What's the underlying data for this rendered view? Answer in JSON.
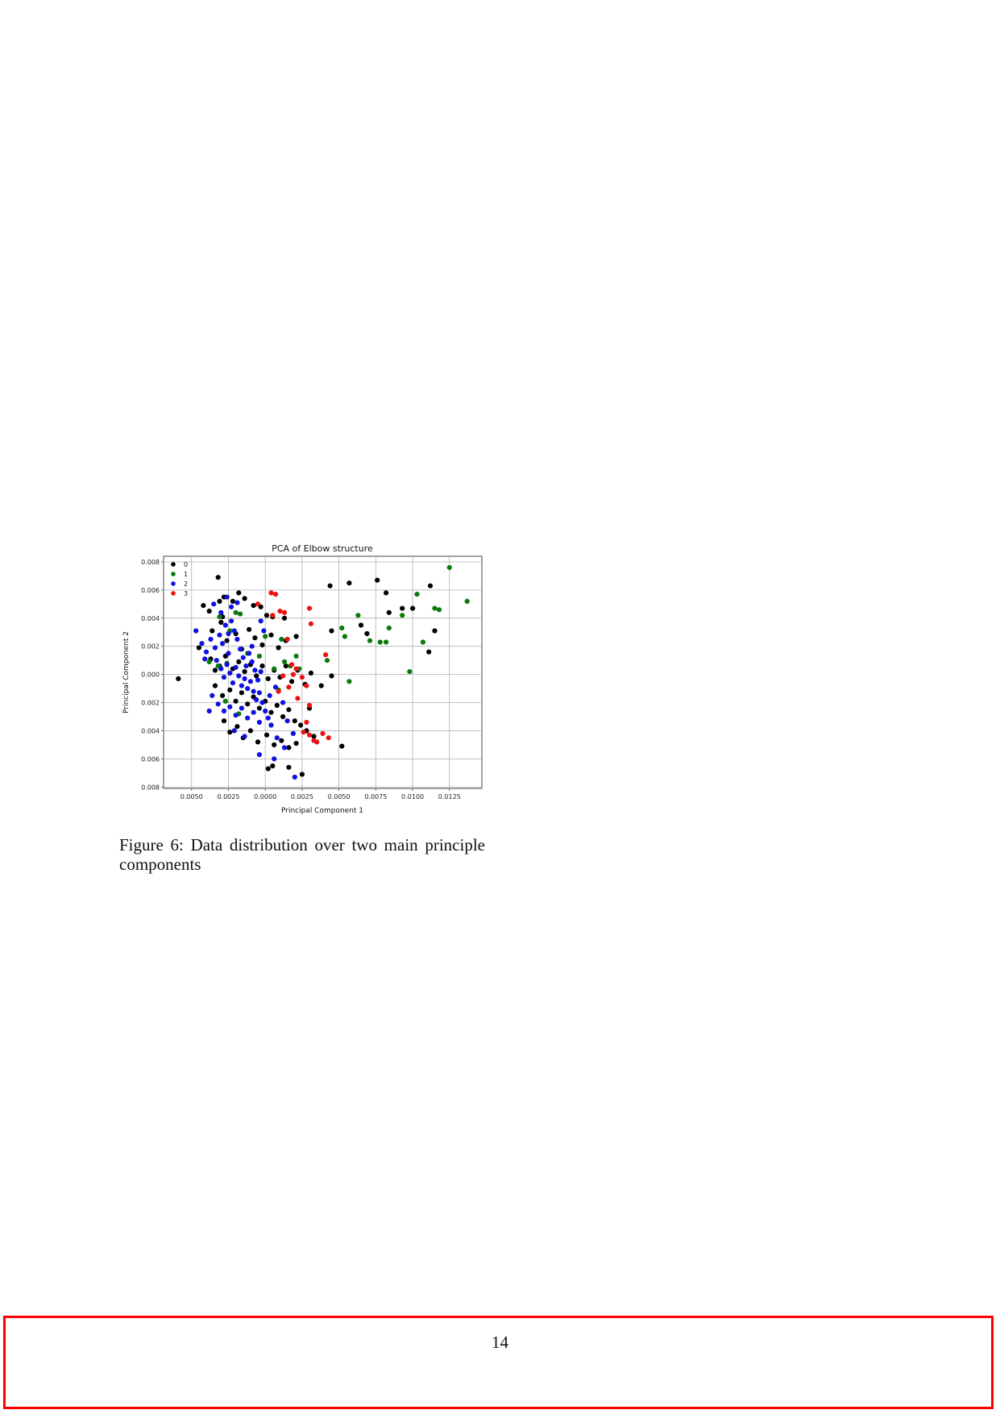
{
  "figure": {
    "caption": "Figure 6:  Data distribution over two main principle components"
  },
  "page": {
    "number": "14",
    "highlight_color": "#ff0000"
  },
  "chart_data": {
    "type": "scatter",
    "title": "PCA of Elbow structure",
    "xlabel": "Principal Component 1",
    "ylabel": "Principal Component 2",
    "xlim": [
      -0.0069,
      0.0147
    ],
    "ylim": [
      -0.0081,
      0.0084
    ],
    "xticks": [
      -0.005,
      -0.0025,
      0.0,
      0.0025,
      0.005,
      0.0075,
      0.01,
      0.0125
    ],
    "xtick_labels": [
      "0.0050",
      "0.0025",
      "0.0000",
      "0.0025",
      "0.0050",
      "0.0075",
      "0.0100",
      "0.0125"
    ],
    "yticks": [
      0.008,
      0.006,
      0.004,
      0.002,
      0.0,
      -0.002,
      -0.004,
      -0.006,
      -0.008
    ],
    "ytick_labels": [
      "0.008",
      "0.006",
      "0.004",
      "0.002",
      "0.000",
      "0.002",
      "0.004",
      "0.006",
      "0.008"
    ],
    "grid": true,
    "legend_position": "upper-left",
    "series": [
      {
        "name": "0",
        "color": "#000000",
        "points": [
          [
            -0.0059,
            -0.0003
          ],
          [
            -0.0045,
            0.0019
          ],
          [
            -0.0042,
            0.0049
          ],
          [
            -0.0038,
            0.0045
          ],
          [
            -0.0032,
            0.0069
          ],
          [
            -0.0031,
            0.0052
          ],
          [
            -0.0029,
            0.0041
          ],
          [
            -0.0028,
            0.0055
          ],
          [
            -0.0022,
            0.0052
          ],
          [
            -0.0018,
            0.0058
          ],
          [
            -0.0014,
            0.0054
          ],
          [
            -0.0008,
            0.0049
          ],
          [
            -0.0003,
            0.0048
          ],
          [
            0.0001,
            0.0042
          ],
          [
            0.0005,
            0.0041
          ],
          [
            0.0013,
            0.004
          ],
          [
            -0.0036,
            0.0031
          ],
          [
            -0.003,
            0.0037
          ],
          [
            -0.0026,
            0.0024
          ],
          [
            -0.002,
            0.0029
          ],
          [
            -0.0016,
            0.0018
          ],
          [
            -0.0011,
            0.0032
          ],
          [
            -0.0007,
            0.0026
          ],
          [
            -0.0002,
            0.0021
          ],
          [
            0.0004,
            0.0028
          ],
          [
            0.0009,
            0.0019
          ],
          [
            0.0014,
            0.0024
          ],
          [
            0.0021,
            0.0027
          ],
          [
            -0.0037,
            0.0011
          ],
          [
            -0.0031,
            0.0006
          ],
          [
            -0.0027,
            0.0013
          ],
          [
            -0.0022,
            0.0004
          ],
          [
            -0.0018,
            0.0009
          ],
          [
            -0.0014,
            0.0002
          ],
          [
            -0.001,
            0.0007
          ],
          [
            -0.0006,
            -0.0001
          ],
          [
            -0.0002,
            0.0006
          ],
          [
            0.0002,
            -0.0003
          ],
          [
            0.0006,
            0.0003
          ],
          [
            0.001,
            -0.0002
          ],
          [
            0.0014,
            0.0006
          ],
          [
            0.0018,
            -0.0005
          ],
          [
            0.0022,
            0.0003
          ],
          [
            0.0027,
            -0.0007
          ],
          [
            0.0031,
            0.0001
          ],
          [
            -0.0034,
            -0.0008
          ],
          [
            -0.0029,
            -0.0015
          ],
          [
            -0.0024,
            -0.0011
          ],
          [
            -0.002,
            -0.0019
          ],
          [
            -0.0016,
            -0.0013
          ],
          [
            -0.0012,
            -0.0021
          ],
          [
            -0.0008,
            -0.0016
          ],
          [
            -0.0004,
            -0.0024
          ],
          [
            0.0,
            -0.0019
          ],
          [
            0.0004,
            -0.0027
          ],
          [
            0.0008,
            -0.0022
          ],
          [
            0.0012,
            -0.003
          ],
          [
            0.0016,
            -0.0025
          ],
          [
            0.002,
            -0.0033
          ],
          [
            0.0024,
            -0.0036
          ],
          [
            0.0028,
            -0.004
          ],
          [
            0.0033,
            -0.0044
          ],
          [
            -0.0028,
            -0.0033
          ],
          [
            -0.0024,
            -0.0041
          ],
          [
            -0.0019,
            -0.0037
          ],
          [
            -0.0015,
            -0.0045
          ],
          [
            -0.001,
            -0.004
          ],
          [
            -0.0005,
            -0.0048
          ],
          [
            0.0001,
            -0.0043
          ],
          [
            0.0006,
            -0.005
          ],
          [
            0.0011,
            -0.0047
          ],
          [
            0.0016,
            -0.0052
          ],
          [
            0.0021,
            -0.0049
          ],
          [
            0.0002,
            -0.0067
          ],
          [
            0.0005,
            -0.0065
          ],
          [
            0.0016,
            -0.0066
          ],
          [
            0.0025,
            -0.0071
          ],
          [
            0.0052,
            -0.0051
          ],
          [
            0.0045,
            -0.0001
          ],
          [
            0.0038,
            -0.0008
          ],
          [
            0.0045,
            0.0031
          ],
          [
            0.0044,
            0.0063
          ],
          [
            0.0057,
            0.0065
          ],
          [
            0.0076,
            0.0067
          ],
          [
            0.0082,
            0.0058
          ],
          [
            0.0065,
            0.0035
          ],
          [
            0.0069,
            0.0029
          ],
          [
            0.0084,
            0.0044
          ],
          [
            0.0093,
            0.0047
          ],
          [
            0.01,
            0.0047
          ],
          [
            0.0112,
            0.0063
          ],
          [
            0.0115,
            0.0031
          ],
          [
            0.0111,
            0.0016
          ],
          [
            -0.0034,
            0.0003
          ],
          [
            0.003,
            -0.0024
          ]
        ]
      },
      {
        "name": "1",
        "color": "#0a7a0a",
        "points": [
          [
            0.0125,
            0.0076
          ],
          [
            0.0137,
            0.0052
          ],
          [
            0.0103,
            0.0057
          ],
          [
            0.0115,
            0.0047
          ],
          [
            0.0118,
            0.0046
          ],
          [
            0.0093,
            0.0042
          ],
          [
            0.0063,
            0.0042
          ],
          [
            0.0084,
            0.0033
          ],
          [
            0.0052,
            0.0033
          ],
          [
            0.0054,
            0.0027
          ],
          [
            0.0071,
            0.0024
          ],
          [
            0.0078,
            0.0023
          ],
          [
            0.0082,
            0.0023
          ],
          [
            0.0107,
            0.0023
          ],
          [
            0.0098,
            0.0002
          ],
          [
            0.0057,
            -0.0005
          ],
          [
            0.0042,
            0.001
          ],
          [
            0.0021,
            0.0013
          ],
          [
            0.0013,
            0.0009
          ],
          [
            -0.0004,
            0.0013
          ],
          [
            -0.0012,
            0.0015
          ],
          [
            -0.002,
            0.0044
          ],
          [
            -0.0017,
            0.0043
          ],
          [
            -0.0024,
            0.0031
          ],
          [
            -0.0032,
            0.0006
          ],
          [
            -0.0038,
            0.0009
          ],
          [
            -0.0026,
            0.0008
          ],
          [
            0.0006,
            0.0004
          ],
          [
            0.0017,
            0.0006
          ],
          [
            0.0023,
            0.0004
          ],
          [
            0.0,
            0.0027
          ],
          [
            -0.0031,
            0.0041
          ],
          [
            0.0011,
            0.0025
          ],
          [
            -0.0027,
            -0.0019
          ],
          [
            -0.0018,
            -0.0028
          ],
          [
            0.0009,
            -0.0011
          ]
        ]
      },
      {
        "name": "2",
        "color": "#1010e0",
        "points": [
          [
            -0.0047,
            0.0031
          ],
          [
            -0.0043,
            0.0022
          ],
          [
            -0.004,
            0.0016
          ],
          [
            -0.0037,
            0.0025
          ],
          [
            -0.0034,
            0.0019
          ],
          [
            -0.0031,
            0.0028
          ],
          [
            -0.0029,
            0.0022
          ],
          [
            -0.0027,
            0.0035
          ],
          [
            -0.0025,
            0.0029
          ],
          [
            -0.0023,
            0.0038
          ],
          [
            -0.0021,
            0.0031
          ],
          [
            -0.0019,
            0.0025
          ],
          [
            -0.0017,
            0.0018
          ],
          [
            -0.0015,
            0.0012
          ],
          [
            -0.0013,
            0.0006
          ],
          [
            -0.0011,
            0.0015
          ],
          [
            -0.0009,
            0.0009
          ],
          [
            -0.0007,
            0.0003
          ],
          [
            -0.0005,
            -0.0004
          ],
          [
            -0.0003,
            0.0002
          ],
          [
            -0.0033,
            0.001
          ],
          [
            -0.003,
            0.0004
          ],
          [
            -0.0028,
            -0.0002
          ],
          [
            -0.0026,
            0.0007
          ],
          [
            -0.0024,
            0.0001
          ],
          [
            -0.0022,
            -0.0006
          ],
          [
            -0.002,
            0.0005
          ],
          [
            -0.0018,
            -0.0001
          ],
          [
            -0.0016,
            -0.0008
          ],
          [
            -0.0014,
            -0.0003
          ],
          [
            -0.0012,
            -0.001
          ],
          [
            -0.001,
            -0.0005
          ],
          [
            -0.0008,
            -0.0012
          ],
          [
            -0.0006,
            -0.0018
          ],
          [
            -0.0004,
            -0.0013
          ],
          [
            -0.0002,
            -0.002
          ],
          [
            0.0,
            -0.0026
          ],
          [
            0.0002,
            -0.0031
          ],
          [
            0.0004,
            -0.0036
          ],
          [
            -0.0036,
            -0.0015
          ],
          [
            -0.0032,
            -0.0021
          ],
          [
            -0.0028,
            -0.0026
          ],
          [
            -0.0024,
            -0.0023
          ],
          [
            -0.002,
            -0.0029
          ],
          [
            -0.0016,
            -0.0024
          ],
          [
            -0.0012,
            -0.0031
          ],
          [
            -0.0008,
            -0.0027
          ],
          [
            -0.0004,
            -0.0034
          ],
          [
            -0.0023,
            0.0048
          ],
          [
            -0.0026,
            0.0055
          ],
          [
            -0.003,
            0.0044
          ],
          [
            -0.0019,
            0.0051
          ],
          [
            -0.0035,
            0.005
          ],
          [
            -0.0003,
            0.0038
          ],
          [
            -0.0001,
            0.0031
          ],
          [
            0.0012,
            -0.002
          ],
          [
            0.0015,
            -0.0033
          ],
          [
            0.0019,
            -0.0042
          ],
          [
            0.0008,
            -0.0045
          ],
          [
            0.0013,
            -0.0052
          ],
          [
            0.002,
            -0.0073
          ],
          [
            0.0006,
            -0.006
          ],
          [
            -0.0004,
            -0.0057
          ],
          [
            -0.0038,
            -0.0026
          ],
          [
            -0.0041,
            0.0011
          ],
          [
            -0.0021,
            -0.004
          ],
          [
            -0.0014,
            -0.0044
          ],
          [
            0.0003,
            -0.0015
          ],
          [
            0.0007,
            -0.0009
          ],
          [
            -0.0009,
            0.002
          ],
          [
            -0.0025,
            0.0015
          ]
        ]
      },
      {
        "name": "3",
        "color": "#ee1111",
        "points": [
          [
            0.0004,
            0.0058
          ],
          [
            0.0007,
            0.0057
          ],
          [
            0.001,
            0.0045
          ],
          [
            0.0013,
            0.0044
          ],
          [
            0.0005,
            0.0042
          ],
          [
            -0.0005,
            0.005
          ],
          [
            0.003,
            0.0047
          ],
          [
            0.0031,
            0.0036
          ],
          [
            0.0041,
            0.0014
          ],
          [
            0.0015,
            0.0025
          ],
          [
            0.0018,
            0.0007
          ],
          [
            0.0021,
            0.0004
          ],
          [
            0.0025,
            -0.0002
          ],
          [
            0.0028,
            -0.0008
          ],
          [
            0.0012,
            -0.0001
          ],
          [
            0.003,
            -0.0022
          ],
          [
            0.0028,
            -0.0034
          ],
          [
            0.0026,
            -0.0041
          ],
          [
            0.003,
            -0.0043
          ],
          [
            0.0033,
            -0.0047
          ],
          [
            0.0035,
            -0.0048
          ],
          [
            0.0039,
            -0.0042
          ],
          [
            0.0043,
            -0.0045
          ],
          [
            0.0009,
            -0.0012
          ],
          [
            0.0016,
            -0.0009
          ],
          [
            0.0022,
            -0.0017
          ],
          [
            0.0019,
            0.0
          ]
        ]
      }
    ]
  }
}
